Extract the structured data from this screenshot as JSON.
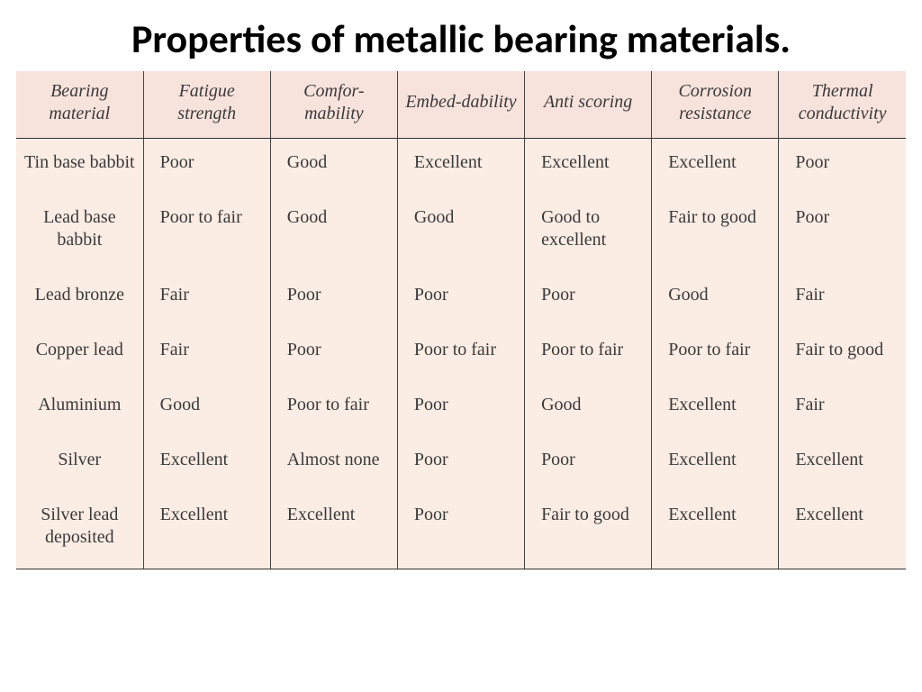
{
  "title": "Properties of metallic bearing materials.",
  "table": {
    "type": "table",
    "header_bg": "#f8e2dc",
    "body_bg": "#fbece4",
    "border_color": "#333333",
    "text_color": "#3a3a3a",
    "header_font_style": "italic",
    "font_family": "Georgia, serif",
    "cell_fontsize": 20,
    "columns": [
      "Bearing material",
      "Fatigue strength",
      "Comfor-mability",
      "Embed-dability",
      "Anti scoring",
      "Corrosion resistance",
      "Thermal conductivity"
    ],
    "rows": [
      [
        "Tin base babbit",
        "Poor",
        "Good",
        "Excellent",
        "Excellent",
        "Excellent",
        "Poor"
      ],
      [
        "Lead base babbit",
        "Poor to fair",
        "Good",
        "Good",
        "Good to excellent",
        "Fair to good",
        "Poor"
      ],
      [
        "Lead bronze",
        "Fair",
        "Poor",
        "Poor",
        "Poor",
        "Good",
        "Fair"
      ],
      [
        "Copper lead",
        "Fair",
        "Poor",
        "Poor to fair",
        "Poor to fair",
        "Poor to fair",
        "Fair to good"
      ],
      [
        "Aluminium",
        "Good",
        "Poor to fair",
        "Poor",
        "Good",
        "Excellent",
        "Fair"
      ],
      [
        "Silver",
        "Excellent",
        "Almost none",
        "Poor",
        "Poor",
        "Excellent",
        "Excellent"
      ],
      [
        "Silver lead deposited",
        "Excellent",
        "Excellent",
        "Poor",
        "Fair to good",
        "Excellent",
        "Excellent"
      ]
    ]
  }
}
